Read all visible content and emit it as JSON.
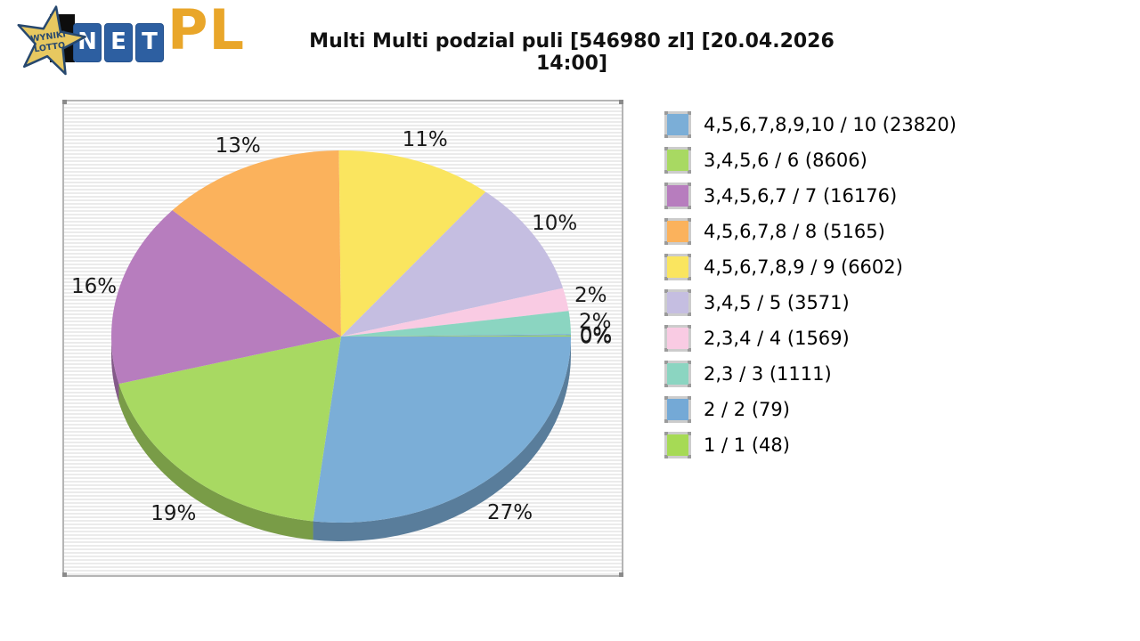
{
  "logo": {
    "star_line1": "WYNIKI",
    "star_line2": "LOTTO",
    "net": [
      "N",
      "E",
      "T"
    ],
    "suffix": "PL",
    "colors": {
      "star_fill": "#e7c860",
      "star_outline": "#27486e",
      "tile_blue": "#2d5fa1",
      "pl_gold": "#e9a62a"
    }
  },
  "title": "Multi Multi podzial puli [546980 zl] [20.04.2026 14:00]",
  "chart_data": {
    "type": "pie",
    "style": "pie3d",
    "title": "Multi Multi podzial puli [546980 zl] [20.04.2026 14:00]",
    "legend_position": "right",
    "start": "east-clockwise",
    "slices": [
      {
        "legend_label": "4,5,6,7,8,9,10 / 10 (23820)",
        "tier": "4,5,6,7,8,9,10 / 10",
        "winners": 23820,
        "pct": 27,
        "pct_label": "27%",
        "color": "#7baed7"
      },
      {
        "legend_label": "3,4,5,6 / 6 (8606)",
        "tier": "3,4,5,6 / 6",
        "winners": 8606,
        "pct": 19,
        "pct_label": "19%",
        "color": "#a8d962"
      },
      {
        "legend_label": "3,4,5,6,7 / 7 (16176)",
        "tier": "3,4,5,6,7 / 7",
        "winners": 16176,
        "pct": 16,
        "pct_label": "16%",
        "color": "#b77dbe"
      },
      {
        "legend_label": "4,5,6,7,8 / 8 (5165)",
        "tier": "4,5,6,7,8 / 8",
        "winners": 5165,
        "pct": 13,
        "pct_label": "13%",
        "color": "#fbb25c"
      },
      {
        "legend_label": "4,5,6,7,8,9 / 9 (6602)",
        "tier": "4,5,6,7,8,9 / 9",
        "winners": 6602,
        "pct": 11,
        "pct_label": "11%",
        "color": "#fae55f"
      },
      {
        "legend_label": "3,4,5 / 5 (3571)",
        "tier": "3,4,5 / 5",
        "winners": 3571,
        "pct": 10,
        "pct_label": "10%",
        "color": "#c5bee1"
      },
      {
        "legend_label": "2,3,4 / 4 (1569)",
        "tier": "2,3,4 / 4",
        "winners": 1569,
        "pct": 2,
        "pct_label": "2%",
        "color": "#f9cbe3"
      },
      {
        "legend_label": "2,3 / 3 (1111)",
        "tier": "2,3 / 3",
        "winners": 1111,
        "pct": 2,
        "pct_label": "2%",
        "color": "#8bd5c1"
      },
      {
        "legend_label": "2 / 2 (79)",
        "tier": "2 / 2",
        "winners": 79,
        "pct": 0,
        "pct_label": "0%",
        "color": "#74a9d6"
      },
      {
        "legend_label": "1 / 1 (48)",
        "tier": "1 / 1",
        "winners": 48,
        "pct": 0,
        "pct_label": "0%",
        "color": "#a6da55"
      }
    ]
  }
}
